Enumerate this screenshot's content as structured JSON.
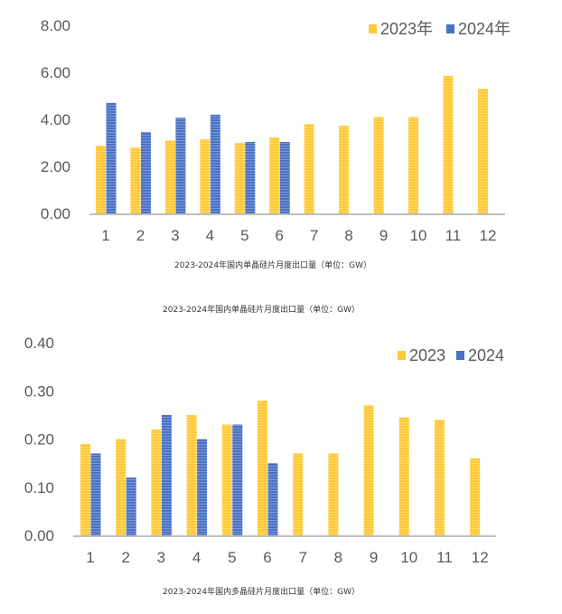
{
  "colors": {
    "y2023": "#FFC936",
    "y2024": "#4A72C4",
    "axis": "#BFBFBF"
  },
  "captions": {
    "chart1": "2023-2024年国内单晶硅片月度出口量（单位：GW）",
    "repeat": "2023-2024年国内单晶硅片月度出口量（单位：GW）",
    "chart2": "2023-2024年国内多晶硅片月度出口量（单位：GW）"
  },
  "chart_data": [
    {
      "type": "bar",
      "title": "2023-2024年国内单晶硅片月度出口量（单位：GW）",
      "categories": [
        "1",
        "2",
        "3",
        "4",
        "5",
        "6",
        "7",
        "8",
        "9",
        "10",
        "11",
        "12"
      ],
      "series": [
        {
          "name": "2023年",
          "values": [
            2.88,
            2.8,
            3.1,
            3.15,
            3.0,
            3.23,
            3.8,
            3.73,
            4.1,
            4.1,
            5.85,
            5.3
          ]
        },
        {
          "name": "2024年",
          "values": [
            4.7,
            3.46,
            4.07,
            4.2,
            3.04,
            3.04,
            null,
            null,
            null,
            null,
            null,
            null
          ]
        }
      ],
      "yticks": [
        "0.00",
        "2.00",
        "4.00",
        "6.00",
        "8.00"
      ],
      "ylim": [
        0,
        8
      ],
      "legend": "top-right",
      "grid": false
    },
    {
      "type": "bar",
      "title": "2023-2024年国内多晶硅片月度出口量（单位：GW）",
      "categories": [
        "1",
        "2",
        "3",
        "4",
        "5",
        "6",
        "7",
        "8",
        "9",
        "10",
        "11",
        "12"
      ],
      "series": [
        {
          "name": "2023",
          "values": [
            0.19,
            0.2,
            0.22,
            0.25,
            0.23,
            0.28,
            0.17,
            0.17,
            0.27,
            0.245,
            0.24,
            0.16
          ]
        },
        {
          "name": "2024",
          "values": [
            0.17,
            0.12,
            0.25,
            0.2,
            0.23,
            0.15,
            null,
            null,
            null,
            null,
            null,
            null
          ]
        }
      ],
      "yticks": [
        "0.00",
        "0.10",
        "0.20",
        "0.30",
        "0.40"
      ],
      "ylim": [
        0,
        0.4
      ],
      "legend": "top-right",
      "grid": false
    }
  ]
}
